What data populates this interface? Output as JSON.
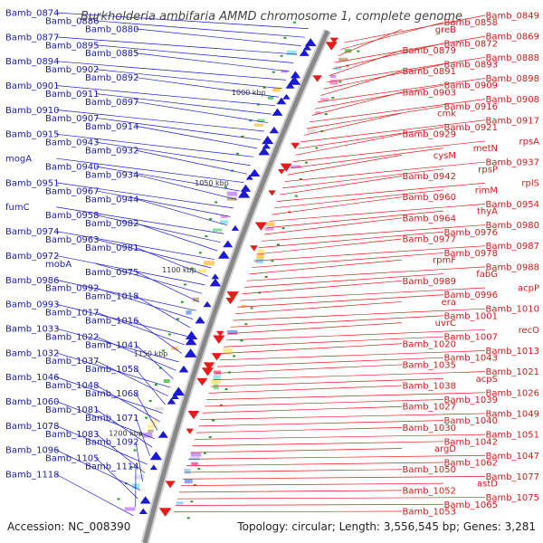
{
  "title": "Burkholderia ambifaria AMMD chromosome 1, complete genome",
  "accession": "Accession: NC_008390",
  "topology": "Topology: circular; Length: 3,556,545 bp; Genes: 3,281",
  "colors": {
    "forward": "#1a1ad6",
    "reverse": "#e81a1a",
    "left_label": "#1b1bb8",
    "right_label": "#d41a1a",
    "backbone": "#888888",
    "tick": "#2a9a2a"
  },
  "kbp_marks": [
    "1000 kbp",
    "1050 kbp",
    "1100 kbp",
    "1150 kbp",
    "1200 kbp"
  ],
  "left_labels": [
    "Bamb_0874",
    "Bamb_0886",
    "Bamb_0880",
    "Bamb_0877",
    "Bamb_0895",
    "Bamb_0885",
    "Bamb_0894",
    "Bamb_0902",
    "Bamb_0892",
    "Bamb_0901",
    "Bamb_0911",
    "Bamb_0897",
    "Bamb_0910",
    "Bamb_0907",
    "Bamb_0914",
    "Bamb_0915",
    "Bamb_0943",
    "Bamb_0932",
    "mogA",
    "Bamb_0940",
    "Bamb_0934",
    "Bamb_0951",
    "Bamb_0967",
    "Bamb_0944",
    "fumC",
    "Bamb_0958",
    "Bamb_0982",
    "Bamb_0974",
    "Bamb_0963",
    "Bamb_0981",
    "Bamb_0972",
    "mobA",
    "Bamb_0975",
    "Bamb_0986",
    "Bamb_0992",
    "Bamb_1018",
    "Bamb_0993",
    "Bamb_1017",
    "Bamb_1016",
    "Bamb_1033",
    "Bamb_1022",
    "Bamb_1041",
    "Bamb_1032",
    "Bamb_1037",
    "Bamb_1058",
    "Bamb_1046",
    "Bamb_1048",
    "Bamb_1068",
    "Bamb_1060",
    "Bamb_1081",
    "Bamb_1071",
    "Bamb_1078",
    "Bamb_1083",
    "Bamb_1092",
    "Bamb_1096",
    "Bamb_1105",
    "Bamb_1114",
    "Bamb_1118"
  ],
  "right_labels": [
    "Bamb_0849",
    "Bamb_0858",
    "greB",
    "Bamb_0869",
    "Bamb_0872",
    "Bamb_0879",
    "Bamb_0888",
    "Bamb_0893",
    "Bamb_0891",
    "Bamb_0898",
    "Bamb_0909",
    "Bamb_0903",
    "Bamb_0908",
    "Bamb_0916",
    "cmk",
    "Bamb_0917",
    "Bamb_0921",
    "Bamb_0929",
    "rpsA",
    "metN",
    "cysM",
    "Bamb_0937",
    "rpsP",
    "Bamb_0942",
    "rplS",
    "rimM",
    "Bamb_0960",
    "Bamb_0954",
    "thyA",
    "Bamb_0964",
    "Bamb_0980",
    "Bamb_0976",
    "Bamb_0977",
    "Bamb_0987",
    "Bamb_0978",
    "rpmF",
    "Bamb_0988",
    "fabG",
    "Bamb_0989",
    "acpP",
    "Bamb_0996",
    "era",
    "Bamb_1010",
    "Bamb_1001",
    "uvrC",
    "recO",
    "Bamb_1007",
    "Bamb_1020",
    "Bamb_1013",
    "Bamb_1043",
    "Bamb_1035",
    "Bamb_1021",
    "acpS",
    "Bamb_1038",
    "Bamb_1026",
    "Bamb_1039",
    "Bamb_1027",
    "Bamb_1049",
    "Bamb_1040",
    "Bamb_1030",
    "Bamb_1051",
    "Bamb_1042",
    "argD",
    "Bamb_1047",
    "Bamb_1062",
    "Bamb_1050",
    "Bamb_1077",
    "astD",
    "Bamb_1052",
    "Bamb_1075",
    "Bamb_1065",
    "Bamb_1053"
  ]
}
